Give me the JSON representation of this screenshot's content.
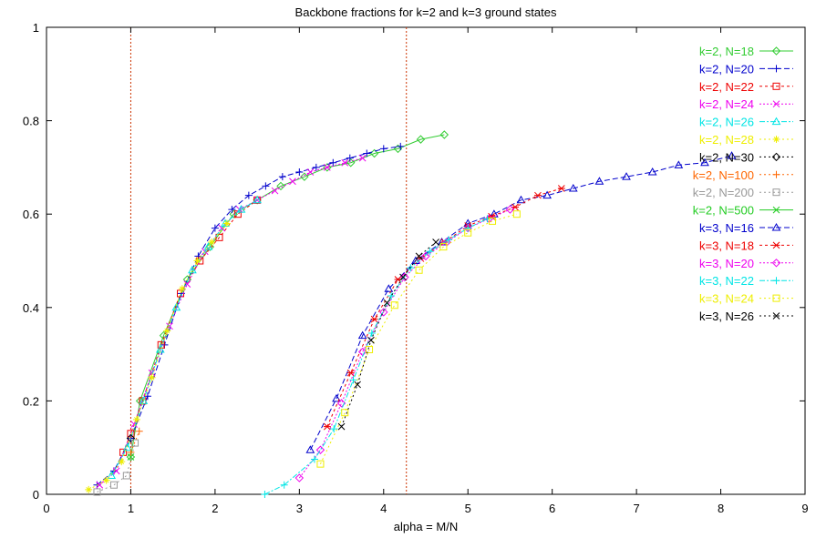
{
  "chart_data": {
    "type": "line",
    "title": "Backbone fractions for k=2 and k=3 ground states",
    "xlabel": "alpha = M/N",
    "ylabel": "",
    "xlim": [
      0,
      9
    ],
    "ylim": [
      0,
      1
    ],
    "x_ticks": [
      "0",
      "1",
      "2",
      "3",
      "4",
      "5",
      "6",
      "7",
      "8",
      "9"
    ],
    "y_ticks": [
      "0",
      "0.2",
      "0.4",
      "0.6",
      "0.8",
      "1"
    ],
    "grid": false,
    "legend_position": "top-right",
    "vertical_lines": [
      1.0,
      4.27
    ],
    "series": [
      {
        "name": "k=2, N=18",
        "color": "#33cc33",
        "marker": "diamond",
        "dash": "",
        "points": [
          [
            1.0,
            0.08
          ],
          [
            1.11,
            0.2
          ],
          [
            1.39,
            0.34
          ],
          [
            1.67,
            0.46
          ],
          [
            1.94,
            0.53
          ],
          [
            2.22,
            0.6
          ],
          [
            2.5,
            0.63
          ],
          [
            2.78,
            0.66
          ],
          [
            3.06,
            0.68
          ],
          [
            3.33,
            0.7
          ],
          [
            3.61,
            0.71
          ],
          [
            3.89,
            0.73
          ],
          [
            4.17,
            0.74
          ],
          [
            4.44,
            0.76
          ],
          [
            4.72,
            0.77
          ]
        ]
      },
      {
        "name": "k=2, N=20",
        "color": "#0000cc",
        "marker": "plus",
        "dash": "6,3",
        "points": [
          [
            0.6,
            0.02
          ],
          [
            0.8,
            0.05
          ],
          [
            1.0,
            0.12
          ],
          [
            1.2,
            0.21
          ],
          [
            1.4,
            0.32
          ],
          [
            1.6,
            0.43
          ],
          [
            1.8,
            0.51
          ],
          [
            2.0,
            0.57
          ],
          [
            2.2,
            0.61
          ],
          [
            2.4,
            0.64
          ],
          [
            2.6,
            0.66
          ],
          [
            2.8,
            0.68
          ],
          [
            3.0,
            0.69
          ],
          [
            3.2,
            0.7
          ],
          [
            3.4,
            0.71
          ],
          [
            3.6,
            0.72
          ],
          [
            3.8,
            0.73
          ],
          [
            4.0,
            0.74
          ],
          [
            4.2,
            0.745
          ]
        ]
      },
      {
        "name": "k=2, N=22",
        "color": "#ee0000",
        "marker": "square",
        "dash": "3,3",
        "points": [
          [
            0.91,
            0.09
          ],
          [
            1.0,
            0.13
          ],
          [
            1.14,
            0.2
          ],
          [
            1.36,
            0.32
          ],
          [
            1.59,
            0.43
          ],
          [
            1.82,
            0.5
          ],
          [
            2.05,
            0.55
          ],
          [
            2.27,
            0.6
          ],
          [
            2.5,
            0.63
          ]
        ]
      },
      {
        "name": "k=2, N=24",
        "color": "#ee00ee",
        "marker": "x",
        "dash": "2,2",
        "points": [
          [
            0.63,
            0.02
          ],
          [
            0.83,
            0.05
          ],
          [
            1.04,
            0.15
          ],
          [
            1.25,
            0.26
          ],
          [
            1.46,
            0.36
          ],
          [
            1.67,
            0.45
          ],
          [
            1.88,
            0.52
          ],
          [
            2.08,
            0.57
          ],
          [
            2.29,
            0.61
          ],
          [
            2.5,
            0.63
          ],
          [
            2.71,
            0.65
          ],
          [
            2.92,
            0.67
          ],
          [
            3.13,
            0.69
          ],
          [
            3.33,
            0.7
          ],
          [
            3.54,
            0.71
          ],
          [
            3.75,
            0.72
          ]
        ]
      },
      {
        "name": "k=2, N=26",
        "color": "#00e5e5",
        "marker": "triangle",
        "dash": "6,2,2,2",
        "points": [
          [
            0.77,
            0.04
          ],
          [
            0.96,
            0.1
          ],
          [
            1.15,
            0.2
          ],
          [
            1.35,
            0.31
          ],
          [
            1.54,
            0.4
          ],
          [
            1.73,
            0.48
          ],
          [
            1.92,
            0.53
          ],
          [
            2.12,
            0.58
          ],
          [
            2.31,
            0.61
          ],
          [
            2.5,
            0.63
          ]
        ]
      },
      {
        "name": "k=2, N=28",
        "color": "#eeee00",
        "marker": "star",
        "dash": "2,3",
        "points": [
          [
            0.5,
            0.01
          ],
          [
            0.71,
            0.03
          ],
          [
            0.89,
            0.07
          ],
          [
            1.07,
            0.16
          ],
          [
            1.25,
            0.25
          ],
          [
            1.43,
            0.35
          ],
          [
            1.61,
            0.44
          ],
          [
            1.79,
            0.5
          ],
          [
            1.96,
            0.54
          ],
          [
            2.14,
            0.58
          ]
        ]
      },
      {
        "name": "k=2, N=30",
        "color": "#000000",
        "marker": "diamond",
        "dash": "2,3",
        "points": [
          [
            1.0,
            0.12
          ]
        ]
      },
      {
        "name": "k=2, N=100",
        "color": "#ff6600",
        "marker": "plus",
        "dash": "2,3",
        "points": [
          [
            1.0,
            0.09
          ],
          [
            1.1,
            0.135
          ]
        ]
      },
      {
        "name": "k=2, N=200",
        "color": "#999999",
        "marker": "square",
        "dash": "2,3",
        "points": [
          [
            0.6,
            0.005
          ],
          [
            0.8,
            0.02
          ],
          [
            0.95,
            0.04
          ],
          [
            1.05,
            0.11
          ]
        ]
      },
      {
        "name": "k=2, N=500",
        "color": "#22cc22",
        "marker": "x",
        "dash": "",
        "points": [
          [
            1.0,
            0.08
          ]
        ]
      },
      {
        "name": "k=3, N=16",
        "color": "#0000cc",
        "marker": "triangle",
        "dash": "6,3",
        "points": [
          [
            3.13,
            0.095
          ],
          [
            3.44,
            0.205
          ],
          [
            3.75,
            0.34
          ],
          [
            4.06,
            0.44
          ],
          [
            4.38,
            0.5
          ],
          [
            4.69,
            0.54
          ],
          [
            5.0,
            0.58
          ],
          [
            5.31,
            0.6
          ],
          [
            5.63,
            0.63
          ],
          [
            5.94,
            0.64
          ],
          [
            6.25,
            0.655
          ],
          [
            6.56,
            0.67
          ],
          [
            6.88,
            0.68
          ],
          [
            7.19,
            0.69
          ],
          [
            7.5,
            0.705
          ],
          [
            7.81,
            0.71
          ],
          [
            8.13,
            0.725
          ]
        ]
      },
      {
        "name": "k=3, N=18",
        "color": "#ee0000",
        "marker": "asterisk",
        "dash": "3,3",
        "points": [
          [
            3.33,
            0.145
          ],
          [
            3.61,
            0.26
          ],
          [
            3.89,
            0.375
          ],
          [
            4.17,
            0.46
          ],
          [
            4.44,
            0.505
          ],
          [
            4.72,
            0.54
          ],
          [
            5.0,
            0.575
          ],
          [
            5.28,
            0.595
          ],
          [
            5.56,
            0.615
          ],
          [
            5.83,
            0.64
          ],
          [
            6.11,
            0.655
          ]
        ]
      },
      {
        "name": "k=3, N=20",
        "color": "#ee00ee",
        "marker": "diamond",
        "dash": "2,2",
        "points": [
          [
            3.0,
            0.035
          ],
          [
            3.25,
            0.095
          ],
          [
            3.5,
            0.195
          ],
          [
            3.75,
            0.305
          ],
          [
            4.0,
            0.39
          ],
          [
            4.25,
            0.465
          ],
          [
            4.5,
            0.51
          ],
          [
            4.75,
            0.54
          ],
          [
            5.0,
            0.57
          ],
          [
            5.25,
            0.59
          ],
          [
            5.5,
            0.61
          ]
        ]
      },
      {
        "name": "k=3, N=22",
        "color": "#00e5e5",
        "marker": "plus",
        "dash": "6,2,2,2",
        "points": [
          [
            2.59,
            0.0
          ],
          [
            2.82,
            0.02
          ],
          [
            3.18,
            0.075
          ],
          [
            3.41,
            0.14
          ],
          [
            3.64,
            0.245
          ],
          [
            3.86,
            0.345
          ],
          [
            4.09,
            0.425
          ],
          [
            4.32,
            0.485
          ],
          [
            4.55,
            0.52
          ],
          [
            4.77,
            0.545
          ],
          [
            5.0,
            0.57
          ],
          [
            5.23,
            0.59
          ]
        ]
      },
      {
        "name": "k=3, N=24",
        "color": "#eeee00",
        "marker": "square",
        "dash": "2,3",
        "points": [
          [
            3.25,
            0.065
          ],
          [
            3.54,
            0.175
          ],
          [
            3.83,
            0.31
          ],
          [
            4.13,
            0.405
          ],
          [
            4.42,
            0.48
          ],
          [
            4.71,
            0.53
          ],
          [
            5.0,
            0.56
          ],
          [
            5.29,
            0.585
          ],
          [
            5.58,
            0.6
          ]
        ]
      },
      {
        "name": "k=3, N=26",
        "color": "#000000",
        "marker": "x",
        "dash": "2,3",
        "points": [
          [
            3.5,
            0.145
          ],
          [
            3.69,
            0.235
          ],
          [
            3.85,
            0.33
          ],
          [
            4.04,
            0.41
          ],
          [
            4.23,
            0.465
          ],
          [
            4.42,
            0.51
          ],
          [
            4.62,
            0.54
          ]
        ]
      }
    ]
  }
}
